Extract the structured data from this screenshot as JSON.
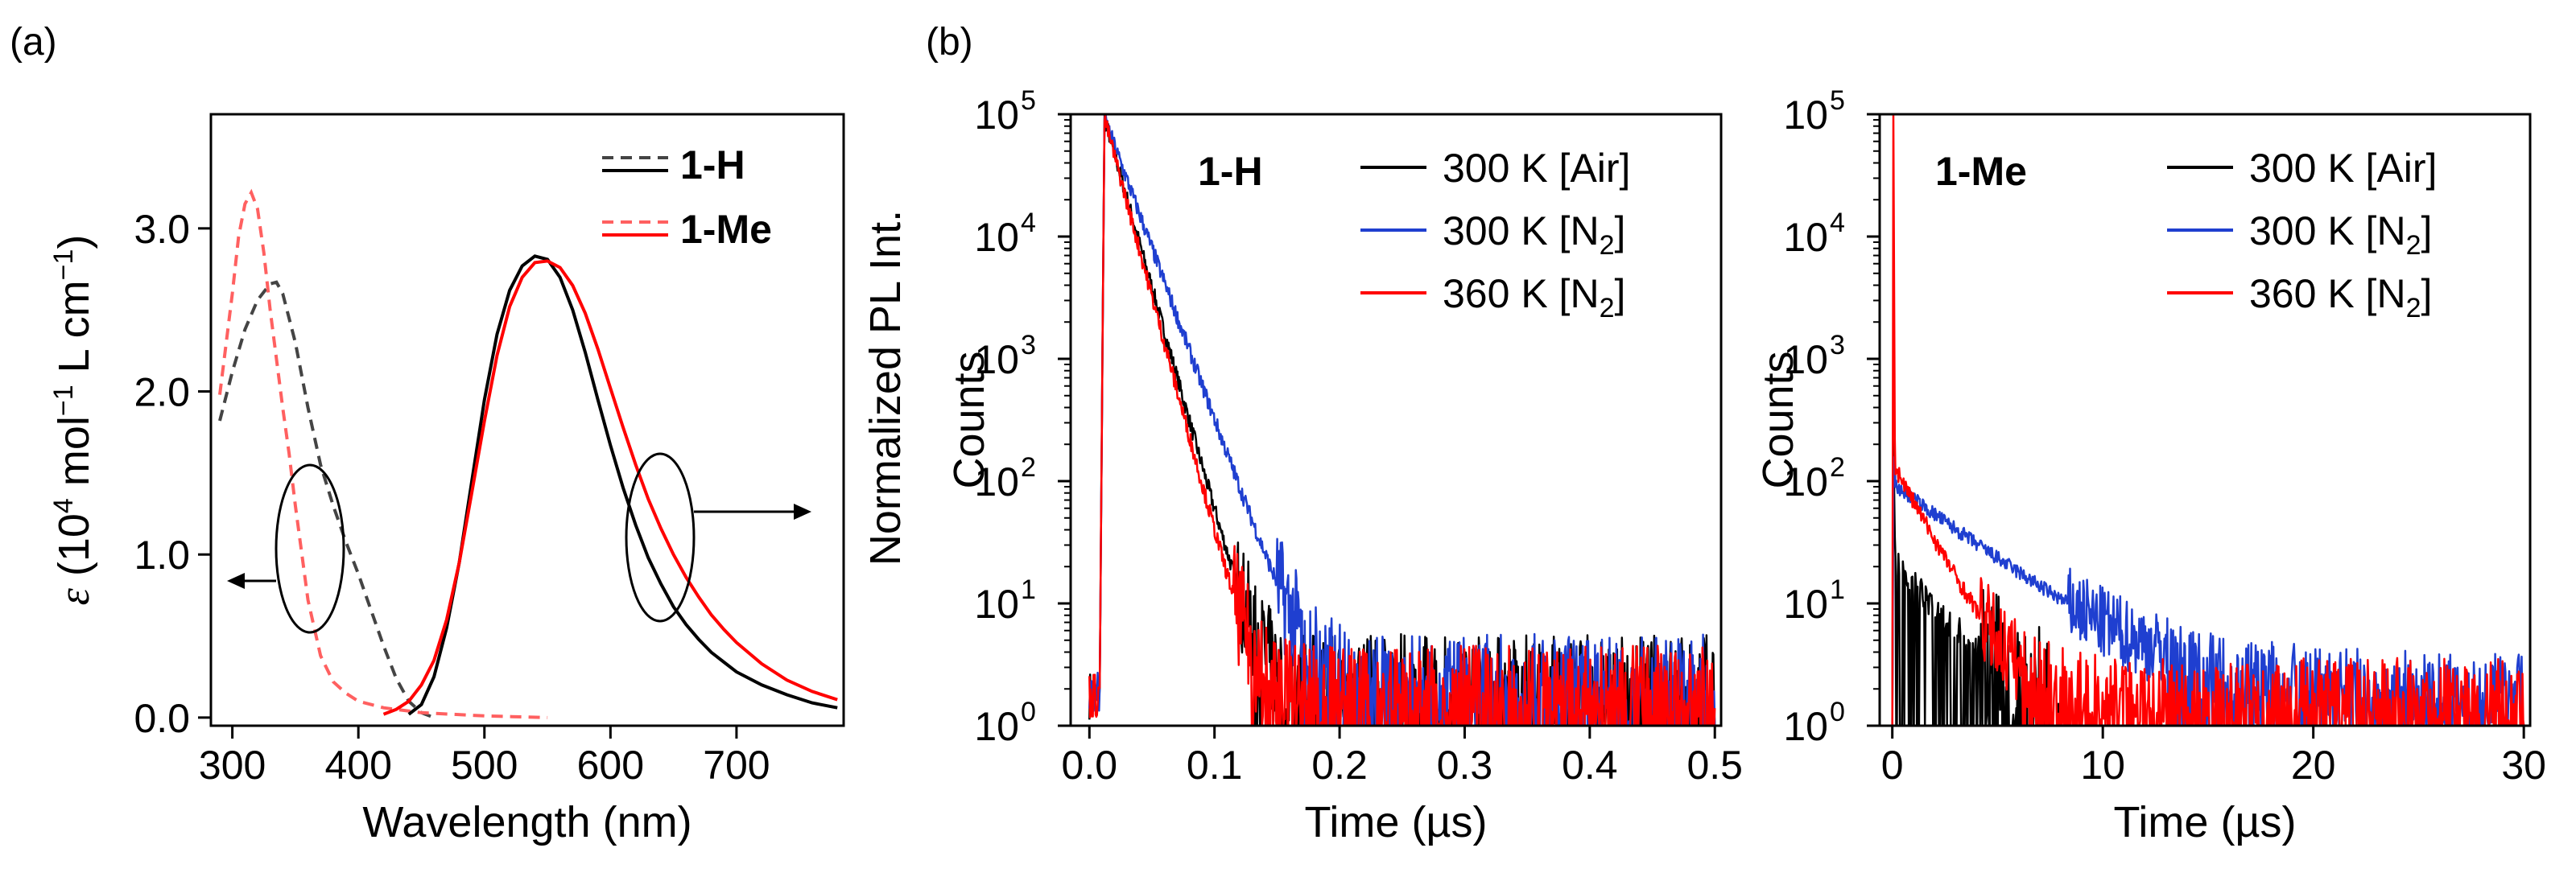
{
  "panel_labels": [
    "(a)",
    "(b)"
  ],
  "colors": {
    "black": "#000000",
    "blue": "#1f3fd0",
    "red": "#ff0000",
    "red_light": "#ff6060",
    "gray": "#444444"
  },
  "chart_data": [
    {
      "id": "a",
      "type": "line",
      "title": "",
      "xlabel": "Wavelength (nm)",
      "ylabel": "ε (10^4 mol^-1 L cm^-1)",
      "ylabel_parts": {
        "sym": "ε",
        "base": " (10",
        "e1": "4",
        "mid": " mol",
        "e2": "−1",
        "mid2": " L cm",
        "e3": "−1",
        "end": ")"
      },
      "xlim": [
        283,
        785
      ],
      "ylim": [
        -0.05,
        3.7
      ],
      "xticks": [
        300,
        400,
        500,
        600,
        700
      ],
      "xtick_labels": [
        "300",
        "400",
        "500",
        "600",
        "700"
      ],
      "yticks": [
        0.0,
        1.0,
        2.0,
        3.0
      ],
      "ytick_labels": [
        "0.0",
        "1.0",
        "2.0",
        "3.0"
      ],
      "legend": [
        {
          "label": "1-H",
          "color": "black"
        },
        {
          "label": "1-Me",
          "color": "red"
        }
      ],
      "series": [
        {
          "name": "1-H absorption",
          "style": "dashed",
          "color": "gray",
          "x": [
            290,
            300,
            310,
            320,
            330,
            335,
            340,
            350,
            360,
            370,
            380,
            390,
            400,
            410,
            420,
            430,
            440,
            450,
            460
          ],
          "y": [
            1.82,
            2.12,
            2.38,
            2.56,
            2.66,
            2.67,
            2.6,
            2.3,
            1.9,
            1.55,
            1.3,
            1.08,
            0.88,
            0.66,
            0.44,
            0.24,
            0.1,
            0.03,
            0.0
          ]
        },
        {
          "name": "1-Me absorption",
          "style": "dashed",
          "color": "red_light",
          "x": [
            290,
            300,
            305,
            310,
            315,
            320,
            325,
            330,
            335,
            340,
            345,
            350,
            360,
            370,
            380,
            390,
            400,
            420,
            450,
            500,
            550
          ],
          "y": [
            1.98,
            2.6,
            2.95,
            3.15,
            3.22,
            3.12,
            2.85,
            2.5,
            2.2,
            1.9,
            1.62,
            1.3,
            0.72,
            0.38,
            0.22,
            0.15,
            0.1,
            0.06,
            0.03,
            0.01,
            0.0
          ]
        },
        {
          "name": "1-H emission",
          "style": "solid",
          "color": "black",
          "x": [
            440,
            450,
            460,
            470,
            480,
            490,
            500,
            510,
            520,
            530,
            540,
            550,
            560,
            570,
            580,
            590,
            600,
            610,
            620,
            630,
            640,
            650,
            660,
            670,
            680,
            690,
            700,
            720,
            740,
            760,
            780
          ],
          "y": [
            0.02,
            0.08,
            0.25,
            0.55,
            0.95,
            1.45,
            1.95,
            2.35,
            2.62,
            2.77,
            2.83,
            2.81,
            2.7,
            2.5,
            2.24,
            1.95,
            1.67,
            1.41,
            1.18,
            0.98,
            0.82,
            0.68,
            0.57,
            0.48,
            0.4,
            0.34,
            0.28,
            0.2,
            0.14,
            0.09,
            0.06
          ]
        },
        {
          "name": "1-Me emission",
          "style": "solid",
          "color": "red",
          "x": [
            420,
            430,
            440,
            450,
            460,
            470,
            480,
            490,
            500,
            510,
            520,
            530,
            540,
            550,
            560,
            570,
            580,
            590,
            600,
            610,
            620,
            630,
            640,
            650,
            660,
            670,
            680,
            690,
            700,
            720,
            740,
            760,
            780
          ],
          "y": [
            0.02,
            0.05,
            0.1,
            0.2,
            0.35,
            0.6,
            0.95,
            1.38,
            1.82,
            2.22,
            2.52,
            2.7,
            2.79,
            2.8,
            2.76,
            2.65,
            2.48,
            2.26,
            2.02,
            1.78,
            1.55,
            1.34,
            1.16,
            1.0,
            0.86,
            0.74,
            0.63,
            0.54,
            0.46,
            0.33,
            0.23,
            0.16,
            0.11
          ]
        }
      ]
    },
    {
      "id": "b1",
      "type": "line",
      "title": "1-H",
      "xlabel": "Time (µs)",
      "ylabel": "Counts",
      "ylabel_outer": "Normalized PL Int.",
      "xlim": [
        -0.015,
        0.505
      ],
      "yscale": "log",
      "ylim_exp": [
        0,
        5
      ],
      "xticks": [
        0.0,
        0.1,
        0.2,
        0.3,
        0.4,
        0.5
      ],
      "xtick_labels": [
        "0.0",
        "0.1",
        "0.2",
        "0.3",
        "0.4",
        "0.5"
      ],
      "yticks_exp": [
        0,
        1,
        2,
        3,
        4,
        5
      ],
      "legend": [
        {
          "label": "300 K [Air]",
          "color": "black"
        },
        {
          "label": "300 K [N2]",
          "label_parts": [
            "300 K [N",
            "2",
            "]"
          ],
          "color": "blue"
        },
        {
          "label": "360 K [N2]",
          "label_parts": [
            "360 K [N",
            "2",
            "]"
          ],
          "color": "red"
        }
      ],
      "series": [
        {
          "name": "300 K [Air]",
          "color": "black",
          "onset": 0.008,
          "peak_t": 0.012,
          "peak_exp": 4.97,
          "tau": 0.0119,
          "floor": 2.0,
          "noise_exp": 0.45,
          "end": 0.5
        },
        {
          "name": "300 K [N2]",
          "color": "blue",
          "onset": 0.008,
          "peak_t": 0.012,
          "peak_exp": 4.97,
          "tau": 0.0155,
          "floor": 2.0,
          "noise_exp": 0.45,
          "end": 0.5
        },
        {
          "name": "360 K [N2]",
          "color": "red",
          "onset": 0.008,
          "peak_t": 0.012,
          "peak_exp": 4.97,
          "tau": 0.0113,
          "floor": 1.6,
          "noise_exp": 0.45,
          "end": 0.5
        }
      ]
    },
    {
      "id": "b2",
      "type": "line",
      "title": "1-Me",
      "xlabel": "Time (µs)",
      "ylabel": "Counts",
      "xlim": [
        -0.6,
        30.3
      ],
      "yscale": "log",
      "ylim_exp": [
        0,
        5
      ],
      "xticks": [
        0,
        10,
        20,
        30
      ],
      "xtick_labels": [
        "0",
        "10",
        "20",
        "30"
      ],
      "yticks_exp": [
        0,
        1,
        2,
        3,
        4,
        5
      ],
      "legend": [
        {
          "label": "300 K [Air]",
          "color": "black"
        },
        {
          "label": "300 K [N2]",
          "label_parts": [
            "300 K [N",
            "2",
            "]"
          ],
          "color": "blue"
        },
        {
          "label": "360 K [N2]",
          "label_parts": [
            "360 K [N",
            "2",
            "]"
          ],
          "color": "red"
        }
      ],
      "series": [
        {
          "name": "300 K [Air]",
          "color": "black",
          "spike_exp": 2.4,
          "start_exp": 1.3,
          "tau": 2.2,
          "floor": 0.8,
          "noise_exp": 0.6,
          "end": 8.0
        },
        {
          "name": "300 K [N2]",
          "color": "blue",
          "spike_exp": 2.0,
          "start_exp": 1.95,
          "tau": 3.4,
          "floor": 2.0,
          "noise_exp": 0.3,
          "end": 30.0
        },
        {
          "name": "360 K [N2]",
          "color": "red",
          "spike_exp": 5.0,
          "start_exp": 2.1,
          "tau": 1.35,
          "floor": 1.6,
          "noise_exp": 0.35,
          "end": 30.0
        }
      ]
    }
  ]
}
